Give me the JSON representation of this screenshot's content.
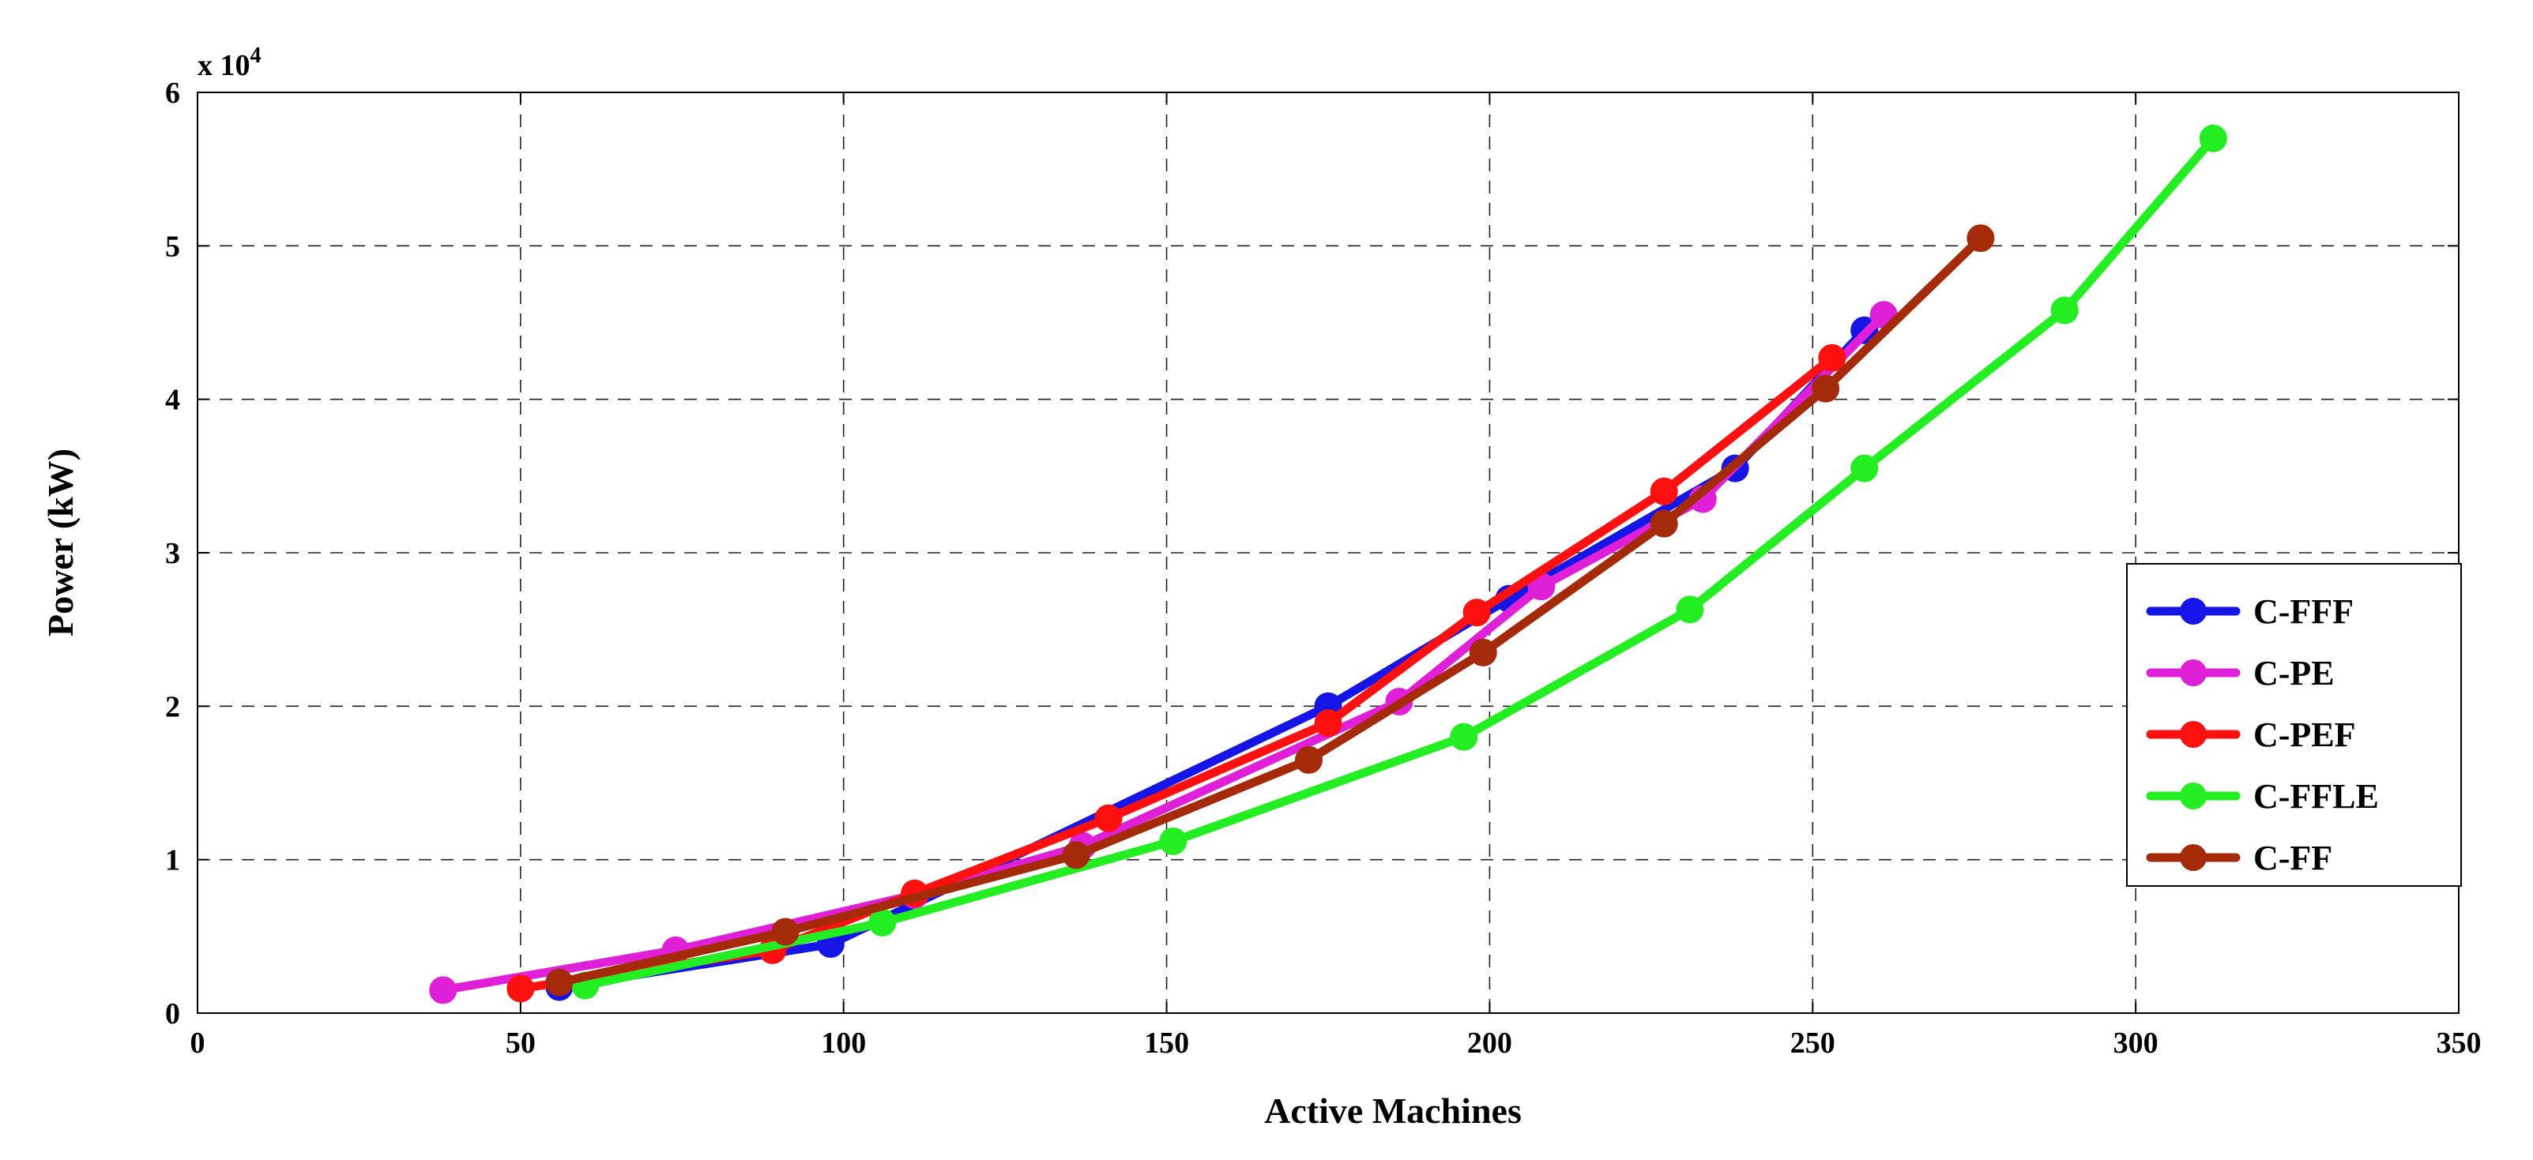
{
  "chart_data": {
    "type": "line",
    "title": "",
    "xlabel": "Active Machines",
    "ylabel": "Power (kW)",
    "y_multiplier_base": "x 10",
    "y_multiplier_exp": "4",
    "xlim": [
      0,
      350
    ],
    "ylim": [
      0,
      60000
    ],
    "x_ticks": [
      0,
      50,
      100,
      150,
      200,
      250,
      300,
      350
    ],
    "y_ticks": [
      0,
      10000,
      20000,
      30000,
      40000,
      50000,
      60000
    ],
    "y_tick_labels": [
      "0",
      "1",
      "2",
      "3",
      "4",
      "5",
      "6"
    ],
    "x_tick_labels": [
      "0",
      "50",
      "100",
      "150",
      "200",
      "250",
      "300",
      "350"
    ],
    "grid": true,
    "legend_position": "right",
    "series": [
      {
        "name": "C-FFF",
        "color": "#1515e8",
        "x": [
          56,
          98,
          175,
          203,
          238,
          258
        ],
        "y": [
          1700,
          4500,
          20000,
          27000,
          35500,
          44500
        ]
      },
      {
        "name": "C-PE",
        "color": "#e020d8",
        "x": [
          38,
          74,
          111,
          137,
          186,
          208,
          233,
          261
        ],
        "y": [
          1500,
          4100,
          7700,
          10900,
          20300,
          27800,
          33500,
          45500
        ]
      },
      {
        "name": "C-PEF",
        "color": "#ff1010",
        "x": [
          50,
          89,
          111,
          141,
          175,
          198,
          227,
          253
        ],
        "y": [
          1600,
          4100,
          7800,
          12700,
          18900,
          26100,
          34000,
          42700
        ]
      },
      {
        "name": "C-FFLE",
        "color": "#22ee22",
        "x": [
          60,
          106,
          151,
          196,
          231,
          258,
          289,
          312
        ],
        "y": [
          1800,
          5900,
          11200,
          18000,
          26300,
          35500,
          45800,
          57000
        ]
      },
      {
        "name": "C-FF",
        "color": "#a52a0a",
        "x": [
          56,
          91,
          136,
          172,
          199,
          227,
          252,
          276
        ],
        "y": [
          2000,
          5300,
          10300,
          16500,
          23500,
          31900,
          40700,
          50500
        ]
      }
    ]
  }
}
